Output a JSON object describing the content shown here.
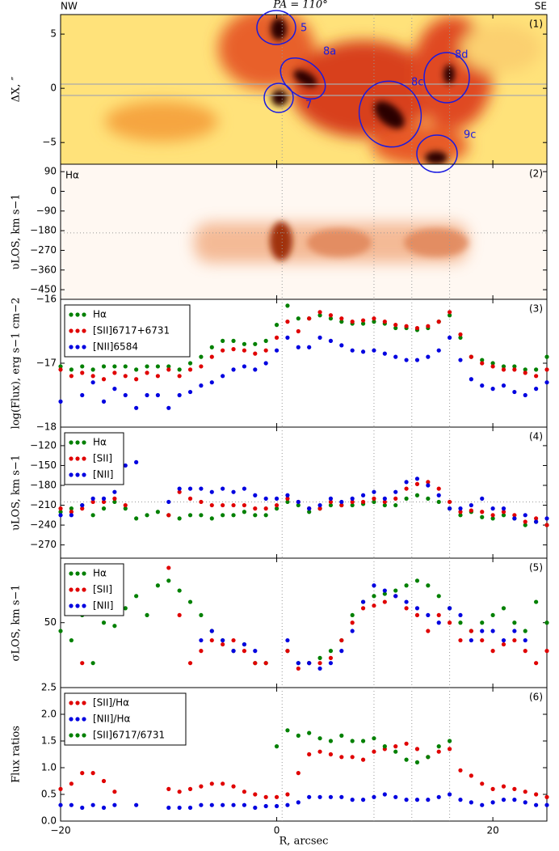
{
  "figure": {
    "title": "PA = 110°",
    "left_label": "NW",
    "right_label": "SE",
    "xlabel": "R, arcsec",
    "xlim": [
      -20,
      25
    ],
    "xticks": [
      {
        "value": -20,
        "label": "−20"
      },
      0,
      20
    ],
    "vlines": [
      0.5,
      9,
      12.5,
      16
    ],
    "x": [
      -20,
      -19,
      -18,
      -17,
      -16,
      -15,
      -14,
      -13,
      -12,
      -11,
      -10,
      -9,
      -8,
      -7,
      -6,
      -5,
      -4,
      -3,
      -2,
      -1,
      0,
      1,
      2,
      3,
      4,
      5,
      6,
      7,
      8,
      9,
      10,
      11,
      12,
      13,
      14,
      15,
      16,
      17,
      18,
      19,
      20,
      21,
      22,
      23,
      24,
      25
    ]
  },
  "chart_data": [
    {
      "type": "image",
      "panel": "(1)",
      "ylabel": "ΔX, ″",
      "ylim": [
        -7,
        6.8
      ],
      "yticks": [
        5,
        0,
        {
          "value": -5,
          "label": "−5"
        }
      ],
      "regions": [
        "5",
        "8a",
        "7",
        "8c",
        "8d",
        "9c"
      ]
    },
    {
      "type": "image",
      "panel": "(2)",
      "note": "Hα",
      "ylabel": "υLOS, km s−1",
      "ylim": [
        -494,
        124
      ],
      "hline": -190,
      "yticks": [
        90,
        0,
        {
          "value": -90,
          "label": "−90"
        },
        {
          "value": -180,
          "label": "−180"
        },
        {
          "value": -270,
          "label": "−270"
        },
        {
          "value": -360,
          "label": "−360"
        },
        {
          "value": -450,
          "label": "−450"
        }
      ]
    },
    {
      "type": "scatter",
      "panel": "(3)",
      "ylabel": "log(Flux), erg s−1 cm−2",
      "ylim": [
        -18,
        -16
      ],
      "yticks": [
        {
          "value": -16,
          "label": "−16"
        },
        {
          "value": -17,
          "label": "−17"
        },
        {
          "value": -18,
          "label": "−18"
        }
      ],
      "series": [
        {
          "name": "Hα",
          "color": "#008000",
          "values": [
            -17.05,
            -17.1,
            -17.05,
            -17.1,
            -17.05,
            -17.05,
            -17.05,
            -17.1,
            -17.05,
            -17.05,
            -17.05,
            -17.1,
            -17.0,
            -16.9,
            -16.75,
            -16.65,
            -16.65,
            -16.7,
            -16.7,
            -16.65,
            -16.4,
            -16.1,
            -16.3,
            -16.3,
            -16.25,
            -16.3,
            -16.35,
            -16.38,
            -16.38,
            -16.35,
            -16.38,
            -16.45,
            -16.45,
            -16.48,
            -16.45,
            -16.35,
            -16.25,
            -16.6,
            -16.9,
            -16.95,
            -17.0,
            -17.05,
            -17.05,
            -17.1,
            -17.1,
            -16.9
          ]
        },
        {
          "name": "[SII]6717+6731",
          "color": "#e00000",
          "values": [
            -17.1,
            -17.2,
            -17.15,
            -17.2,
            -17.25,
            -17.15,
            -17.2,
            -17.25,
            -17.15,
            -17.2,
            -17.1,
            -17.2,
            -17.1,
            -17.05,
            -16.9,
            -16.8,
            -16.78,
            -16.8,
            -16.85,
            -16.8,
            -16.6,
            -16.35,
            -16.5,
            -16.3,
            -16.2,
            -16.25,
            -16.3,
            -16.35,
            -16.33,
            -16.3,
            -16.35,
            -16.4,
            -16.42,
            -16.45,
            -16.42,
            -16.35,
            -16.2,
            -16.55,
            -16.9,
            -17.0,
            -17.05,
            -17.1,
            -17.1,
            -17.15,
            -17.2,
            -17.1
          ]
        },
        {
          "name": "[NII]6584",
          "color": "#0000e0",
          "values": [
            -17.6,
            null,
            -17.5,
            -17.3,
            -17.6,
            -17.4,
            -17.5,
            -17.7,
            -17.5,
            -17.5,
            -17.7,
            -17.5,
            -17.45,
            -17.35,
            -17.3,
            -17.2,
            -17.1,
            -17.05,
            -17.1,
            -17.0,
            -16.8,
            -16.6,
            -16.75,
            -16.75,
            -16.6,
            -16.65,
            -16.72,
            -16.8,
            -16.82,
            -16.8,
            -16.85,
            -16.9,
            -16.95,
            -16.95,
            -16.9,
            -16.8,
            -16.6,
            -16.95,
            -17.25,
            -17.35,
            -17.4,
            -17.35,
            -17.45,
            -17.5,
            -17.4,
            -17.3
          ]
        }
      ]
    },
    {
      "type": "scatter",
      "panel": "(4)",
      "ylabel": "υLOS, km s−1",
      "ylim": [
        -290,
        -92
      ],
      "hline": -205,
      "yticks": [
        {
          "value": -120,
          "label": "−120"
        },
        {
          "value": -150,
          "label": "−150"
        },
        {
          "value": -180,
          "label": "−180"
        },
        {
          "value": -210,
          "label": "−210"
        },
        {
          "value": -240,
          "label": "−240"
        },
        {
          "value": -270,
          "label": "−270"
        }
      ],
      "series": [
        {
          "name": "Hα",
          "color": "#008000",
          "values": [
            -220,
            -215,
            -210,
            -225,
            -215,
            -205,
            -215,
            -230,
            -225,
            -220,
            -225,
            -230,
            -225,
            -225,
            -230,
            -225,
            -225,
            -220,
            -225,
            -225,
            -215,
            -205,
            -210,
            -220,
            -215,
            -210,
            -210,
            -210,
            -208,
            -205,
            -210,
            -210,
            -200,
            -195,
            -200,
            -205,
            -215,
            -225,
            -220,
            -228,
            -230,
            -225,
            -230,
            -240,
            -235,
            -240
          ]
        },
        {
          "name": "[SII]",
          "color": "#e00000",
          "values": [
            -215,
            -220,
            -215,
            -205,
            -205,
            -200,
            -210,
            null,
            null,
            null,
            -225,
            -190,
            -200,
            -205,
            -210,
            -210,
            -210,
            -210,
            -215,
            -215,
            -210,
            -200,
            -205,
            -215,
            -215,
            -205,
            -210,
            -205,
            -205,
            -200,
            -205,
            -200,
            -185,
            -178,
            -175,
            -185,
            -205,
            -220,
            -218,
            -220,
            -225,
            -220,
            -225,
            -235,
            -230,
            -240
          ]
        },
        {
          "name": "[NII]",
          "color": "#0000e0",
          "values": [
            -225,
            -225,
            -210,
            -200,
            -200,
            -190,
            -150,
            -145,
            null,
            null,
            -205,
            -185,
            -185,
            -185,
            -190,
            -185,
            -190,
            -185,
            -195,
            -200,
            -200,
            -195,
            -205,
            -215,
            -210,
            -200,
            -205,
            -200,
            -195,
            -190,
            -200,
            -190,
            -175,
            -170,
            -180,
            -195,
            -215,
            -215,
            -210,
            -200,
            -215,
            -215,
            -230,
            -225,
            -235,
            -230
          ]
        }
      ]
    },
    {
      "type": "scatter",
      "panel": "(5)",
      "ylabel": "σLOS, km s−1",
      "ylim": [
        22,
        113
      ],
      "log_scale": true,
      "yticks": [
        50
      ],
      "series": [
        {
          "name": "Hα",
          "color": "#008000",
          "values": [
            45,
            40,
            55,
            30,
            50,
            48,
            60,
            70,
            55,
            80,
            85,
            75,
            65,
            55,
            45,
            40,
            35,
            38,
            30,
            30,
            null,
            35,
            30,
            30,
            32,
            35,
            40,
            55,
            65,
            70,
            72,
            75,
            80,
            85,
            80,
            70,
            60,
            50,
            45,
            50,
            55,
            60,
            50,
            45,
            65,
            50
          ]
        },
        {
          "name": "[SII]",
          "color": "#e00000",
          "values": [
            null,
            null,
            30,
            null,
            null,
            null,
            null,
            null,
            null,
            null,
            100,
            55,
            30,
            35,
            40,
            38,
            40,
            35,
            30,
            30,
            null,
            35,
            28,
            30,
            30,
            32,
            40,
            50,
            60,
            62,
            65,
            70,
            60,
            55,
            45,
            55,
            50,
            40,
            45,
            40,
            35,
            38,
            40,
            35,
            30,
            35
          ]
        },
        {
          "name": "[NII]",
          "color": "#0000e0",
          "values": [
            null,
            null,
            null,
            null,
            null,
            null,
            null,
            null,
            null,
            null,
            null,
            null,
            null,
            40,
            45,
            40,
            35,
            38,
            35,
            null,
            null,
            40,
            30,
            30,
            28,
            30,
            35,
            45,
            65,
            80,
            75,
            70,
            65,
            60,
            55,
            50,
            60,
            55,
            40,
            45,
            45,
            40,
            45,
            40,
            null,
            null
          ]
        }
      ]
    },
    {
      "type": "scatter",
      "panel": "(6)",
      "ylabel": "Flux ratios",
      "ylim": [
        0,
        2.5
      ],
      "yticks": [
        {
          "value": 0,
          "label": "0.0"
        },
        0.5,
        {
          "value": 1,
          "label": "1.0"
        },
        1.5,
        {
          "value": 2,
          "label": "2.0"
        },
        2.5
      ],
      "series": [
        {
          "name": "[SII]/Hα",
          "color": "#e00000",
          "values": [
            0.6,
            0.7,
            0.9,
            0.9,
            0.75,
            0.55,
            null,
            null,
            null,
            null,
            0.6,
            0.55,
            0.6,
            0.65,
            0.7,
            0.7,
            0.65,
            0.55,
            0.5,
            0.45,
            0.45,
            0.5,
            0.9,
            1.25,
            1.3,
            1.25,
            1.2,
            1.2,
            1.15,
            1.3,
            1.35,
            1.4,
            1.45,
            1.35,
            1.2,
            1.3,
            1.35,
            0.95,
            0.85,
            0.7,
            0.6,
            0.65,
            0.6,
            0.55,
            0.5,
            0.45
          ]
        },
        {
          "name": "[NII]/Hα",
          "color": "#0000e0",
          "values": [
            0.3,
            0.3,
            0.25,
            0.3,
            0.25,
            0.3,
            null,
            0.3,
            null,
            null,
            0.25,
            0.25,
            0.25,
            0.3,
            0.3,
            0.3,
            0.3,
            0.3,
            0.25,
            0.28,
            0.28,
            0.3,
            0.35,
            0.45,
            0.45,
            0.45,
            0.45,
            0.4,
            0.4,
            0.45,
            0.5,
            0.45,
            0.4,
            0.4,
            0.4,
            0.45,
            0.5,
            0.4,
            0.35,
            0.3,
            0.35,
            0.4,
            0.4,
            0.35,
            0.3,
            0.3
          ]
        },
        {
          "name": "[SII]6717/6731",
          "color": "#008000",
          "values": [
            null,
            null,
            null,
            null,
            null,
            null,
            null,
            null,
            null,
            null,
            null,
            null,
            null,
            null,
            null,
            null,
            null,
            null,
            null,
            null,
            1.4,
            1.7,
            1.6,
            1.65,
            1.55,
            1.5,
            1.6,
            1.5,
            1.5,
            1.55,
            1.4,
            1.3,
            1.15,
            1.1,
            1.2,
            1.4,
            1.5,
            null,
            null,
            null,
            null,
            null,
            null,
            null,
            null,
            null
          ]
        }
      ]
    }
  ]
}
